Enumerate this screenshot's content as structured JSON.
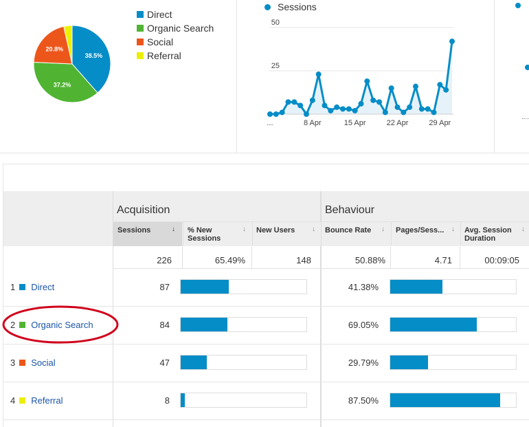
{
  "pie": {
    "legend": [
      {
        "label": "Direct",
        "color": "#058dc7"
      },
      {
        "label": "Organic Search",
        "color": "#50b432"
      },
      {
        "label": "Social",
        "color": "#ed561b"
      },
      {
        "label": "Referral",
        "color": "#edef00"
      }
    ],
    "slice_labels": [
      "38.5%",
      "37.2%",
      "20.8%"
    ]
  },
  "line_chart": {
    "legend": "Sessions",
    "y_ticks": [
      "50",
      "25"
    ],
    "x_ticks": [
      "...",
      "8 Apr",
      "15 Apr",
      "22 Apr",
      "29 Apr"
    ]
  },
  "chart_data": [
    {
      "type": "pie",
      "categories": [
        "Direct",
        "Organic Search",
        "Social",
        "Referral"
      ],
      "values": [
        38.5,
        37.2,
        20.8,
        3.5
      ],
      "colors": [
        "#058dc7",
        "#50b432",
        "#ed561b",
        "#edef00"
      ],
      "legend": "right"
    },
    {
      "type": "area",
      "series": [
        {
          "name": "Sessions",
          "values": [
            0,
            0,
            1,
            7,
            7,
            5,
            0,
            8,
            23,
            5,
            2,
            4,
            3,
            3,
            2,
            6,
            19,
            8,
            7,
            1,
            15,
            4,
            1,
            4,
            16,
            3,
            3,
            1,
            17,
            14,
            42
          ]
        }
      ],
      "ylim": [
        0,
        50
      ],
      "yticks": [
        25,
        50
      ],
      "color": "#058dc7"
    }
  ],
  "table": {
    "group_headers": {
      "acquisition": "Acquisition",
      "behaviour": "Behaviour"
    },
    "columns": {
      "sessions": "Sessions",
      "new_sessions_1": "% New",
      "new_sessions_2": "Sessions",
      "new_users": "New Users",
      "bounce_rate": "Bounce Rate",
      "pages_session": "Pages/Sess...",
      "avg_duration_1": "Avg. Session",
      "avg_duration_2": "Duration"
    },
    "totals": {
      "sessions": "226",
      "new_sessions": "65.49%",
      "new_users": "148",
      "bounce_rate": "50.88%",
      "pages_session": "4.71",
      "avg_duration": "00:09:05"
    },
    "rows": [
      {
        "index": "1",
        "channel": "Direct",
        "color": "#058dc7",
        "sessions": "87",
        "sessions_share": 0.385,
        "bounce_rate": "41.38%",
        "bounce_value": 41.38
      },
      {
        "index": "2",
        "channel": "Organic Search",
        "color": "#50b432",
        "sessions": "84",
        "sessions_share": 0.372,
        "bounce_rate": "69.05%",
        "bounce_value": 69.05
      },
      {
        "index": "3",
        "channel": "Social",
        "color": "#ed561b",
        "sessions": "47",
        "sessions_share": 0.208,
        "bounce_rate": "29.79%",
        "bounce_value": 29.79
      },
      {
        "index": "4",
        "channel": "Referral",
        "color": "#edef00",
        "sessions": "8",
        "sessions_share": 0.035,
        "bounce_rate": "87.50%",
        "bounce_value": 87.5
      }
    ]
  },
  "annotation": {
    "highlight_row": 2,
    "color": "#d0021b"
  }
}
